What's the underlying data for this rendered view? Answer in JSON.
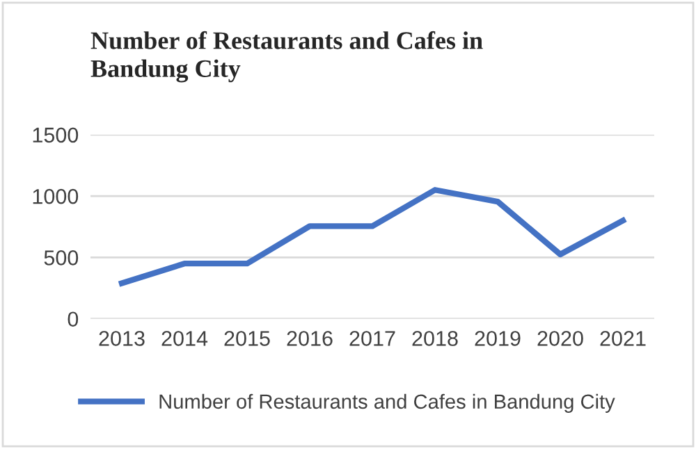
{
  "chart_data": {
    "type": "line",
    "title": "Number of Restaurants and Cafes in\nBandung City",
    "categories": [
      "2013",
      "2014",
      "2015",
      "2016",
      "2017",
      "2018",
      "2019",
      "2020",
      "2021"
    ],
    "series": [
      {
        "name": "Number of Restaurants and Cafes in Bandung City",
        "color": "#4472c4",
        "values": [
          290,
          450,
          450,
          755,
          755,
          1050,
          955,
          525,
          800
        ]
      }
    ],
    "ylim": [
      0,
      1500
    ],
    "yticks": [
      0,
      500,
      1000,
      1500
    ],
    "grid": "y",
    "legend": "bottom",
    "marker": "none",
    "line_style": "solid"
  }
}
